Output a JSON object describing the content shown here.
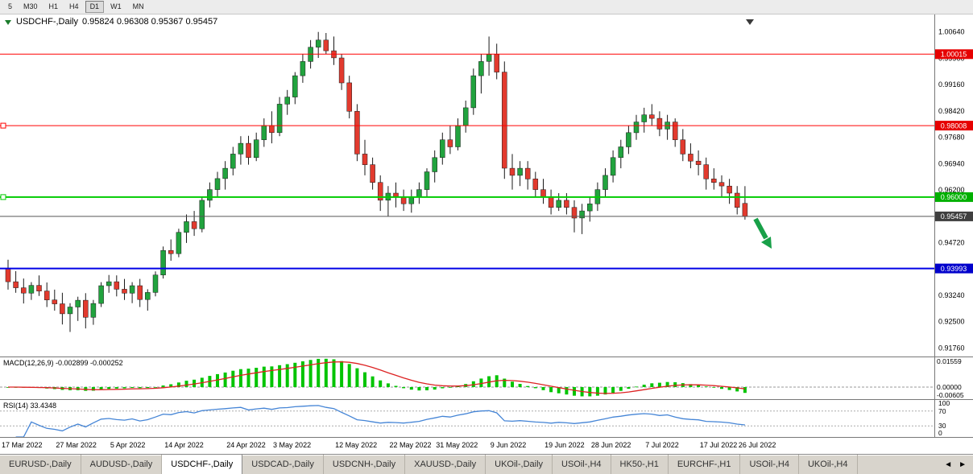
{
  "toolbar": {
    "periods": [
      "5",
      "M30",
      "H1",
      "H4",
      "D1",
      "W1",
      "MN"
    ],
    "active": "D1"
  },
  "chart": {
    "title": "USDCHF-,Daily",
    "ohlc": "0.95824 0.96308 0.95367 0.95457",
    "open": "0.95824",
    "high": "0.96308",
    "low": "0.95367",
    "close": "0.95457"
  },
  "chart_data": {
    "type": "candlestick",
    "symbol": "USDCHF-",
    "timeframe": "Daily",
    "ylim": [
      0.9152,
      1.0113
    ],
    "y_axis_labels": [
      "1.00640",
      "0.99900",
      "0.99160",
      "0.98420",
      "0.97680",
      "0.96940",
      "0.96200",
      "0.95460",
      "0.94720",
      "0.93980",
      "0.93240",
      "0.92500",
      "0.91760"
    ],
    "x_axis_labels": [
      {
        "t": "17 Mar 2022",
        "i": 0
      },
      {
        "t": "27 Mar 2022",
        "i": 7
      },
      {
        "t": "5 Apr 2022",
        "i": 14
      },
      {
        "t": "14 Apr 2022",
        "i": 21
      },
      {
        "t": "24 Apr 2022",
        "i": 29
      },
      {
        "t": "3 May 2022",
        "i": 35
      },
      {
        "t": "12 May 2022",
        "i": 43
      },
      {
        "t": "22 May 2022",
        "i": 50
      },
      {
        "t": "31 May 2022",
        "i": 56
      },
      {
        "t": "9 Jun 2022",
        "i": 63
      },
      {
        "t": "19 Jun 2022",
        "i": 70
      },
      {
        "t": "28 Jun 2022",
        "i": 76
      },
      {
        "t": "7 Jul 2022",
        "i": 83
      },
      {
        "t": "17 Jul 2022",
        "i": 90
      },
      {
        "t": "26 Jul 2022",
        "i": 95
      }
    ],
    "colors": {
      "up": "#21a33e",
      "down": "#e23a2e",
      "wick": "#1a1a1a"
    },
    "arrow_color": "#18a048",
    "candles": [
      [
        0.94,
        0.9424,
        0.934,
        0.9362
      ],
      [
        0.9362,
        0.9392,
        0.9331,
        0.9345
      ],
      [
        0.9345,
        0.9371,
        0.9301,
        0.933
      ],
      [
        0.933,
        0.9361,
        0.9311,
        0.9352
      ],
      [
        0.9352,
        0.938,
        0.9322,
        0.9336
      ],
      [
        0.9336,
        0.936,
        0.9291,
        0.9311
      ],
      [
        0.9311,
        0.934,
        0.9281,
        0.93
      ],
      [
        0.93,
        0.9331,
        0.9242,
        0.9272
      ],
      [
        0.9272,
        0.9302,
        0.9221,
        0.9291
      ],
      [
        0.9291,
        0.932,
        0.9252,
        0.931
      ],
      [
        0.931,
        0.933,
        0.9231,
        0.9262
      ],
      [
        0.9262,
        0.9311,
        0.9241,
        0.9301
      ],
      [
        0.9301,
        0.9361,
        0.9291,
        0.9351
      ],
      [
        0.9351,
        0.9381,
        0.9331,
        0.9362
      ],
      [
        0.9362,
        0.938,
        0.9321,
        0.9341
      ],
      [
        0.9341,
        0.937,
        0.9311,
        0.933
      ],
      [
        0.933,
        0.9361,
        0.9302,
        0.9351
      ],
      [
        0.9351,
        0.937,
        0.9291,
        0.9312
      ],
      [
        0.9312,
        0.9341,
        0.9281,
        0.9332
      ],
      [
        0.9332,
        0.9391,
        0.9321,
        0.9381
      ],
      [
        0.9381,
        0.9461,
        0.9371,
        0.945
      ],
      [
        0.945,
        0.9481,
        0.9421,
        0.9441
      ],
      [
        0.9441,
        0.9511,
        0.9431,
        0.9501
      ],
      [
        0.9501,
        0.9551,
        0.9471,
        0.9531
      ],
      [
        0.9531,
        0.9561,
        0.9491,
        0.9511
      ],
      [
        0.9511,
        0.9601,
        0.9501,
        0.9591
      ],
      [
        0.9591,
        0.9641,
        0.9571,
        0.9621
      ],
      [
        0.9621,
        0.9671,
        0.9601,
        0.9652
      ],
      [
        0.9652,
        0.9701,
        0.9621,
        0.9681
      ],
      [
        0.9681,
        0.9741,
        0.9661,
        0.9721
      ],
      [
        0.9721,
        0.9771,
        0.9691,
        0.9751
      ],
      [
        0.9751,
        0.9772,
        0.9691,
        0.9711
      ],
      [
        0.9711,
        0.9781,
        0.9701,
        0.9761
      ],
      [
        0.9761,
        0.9821,
        0.9741,
        0.9801
      ],
      [
        0.9801,
        0.9841,
        0.9751,
        0.9781
      ],
      [
        0.9781,
        0.9881,
        0.9771,
        0.9861
      ],
      [
        0.9861,
        0.9901,
        0.9831,
        0.9881
      ],
      [
        0.9881,
        0.9951,
        0.9861,
        0.9941
      ],
      [
        0.9941,
        1.0001,
        0.9921,
        0.9981
      ],
      [
        0.9981,
        1.0041,
        0.9961,
        1.0021
      ],
      [
        1.0021,
        1.0064,
        0.9991,
        1.0041
      ],
      [
        1.0041,
        1.0061,
        1.0001,
        1.0011
      ],
      [
        1.0011,
        1.0051,
        0.9971,
        0.9991
      ],
      [
        0.9991,
        1.0001,
        0.9901,
        0.9921
      ],
      [
        0.9921,
        0.9941,
        0.9821,
        0.9841
      ],
      [
        0.9841,
        0.9861,
        0.9701,
        0.9721
      ],
      [
        0.9721,
        0.9761,
        0.9661,
        0.9691
      ],
      [
        0.9691,
        0.9711,
        0.9621,
        0.9641
      ],
      [
        0.9641,
        0.9661,
        0.9561,
        0.9591
      ],
      [
        0.9591,
        0.9631,
        0.9546,
        0.9611
      ],
      [
        0.9611,
        0.9641,
        0.9571,
        0.9601
      ],
      [
        0.9601,
        0.9621,
        0.9561,
        0.9581
      ],
      [
        0.9581,
        0.9621,
        0.9556,
        0.9601
      ],
      [
        0.9601,
        0.9641,
        0.9581,
        0.9621
      ],
      [
        0.9621,
        0.9681,
        0.9601,
        0.9671
      ],
      [
        0.9671,
        0.9731,
        0.9641,
        0.9711
      ],
      [
        0.9711,
        0.9781,
        0.9691,
        0.9761
      ],
      [
        0.9761,
        0.9801,
        0.9721,
        0.9741
      ],
      [
        0.9741,
        0.9821,
        0.9731,
        0.9801
      ],
      [
        0.9801,
        0.9871,
        0.9781,
        0.9851
      ],
      [
        0.9851,
        0.9961,
        0.9831,
        0.9941
      ],
      [
        0.9941,
        1.0001,
        0.9891,
        0.9981
      ],
      [
        0.9981,
        1.0051,
        0.9941,
        1.0001
      ],
      [
        1.0001,
        1.0031,
        0.9931,
        0.9951
      ],
      [
        0.9951,
        0.9981,
        0.9651,
        0.9681
      ],
      [
        0.9681,
        0.9721,
        0.9621,
        0.9661
      ],
      [
        0.9661,
        0.9701,
        0.9631,
        0.9681
      ],
      [
        0.9681,
        0.9701,
        0.9621,
        0.9651
      ],
      [
        0.9651,
        0.9671,
        0.9601,
        0.9621
      ],
      [
        0.9621,
        0.9651,
        0.9581,
        0.9601
      ],
      [
        0.9601,
        0.9621,
        0.9551,
        0.9571
      ],
      [
        0.9571,
        0.9611,
        0.9561,
        0.9591
      ],
      [
        0.9591,
        0.9611,
        0.9551,
        0.9571
      ],
      [
        0.9571,
        0.9591,
        0.9501,
        0.9541
      ],
      [
        0.9541,
        0.9581,
        0.9496,
        0.9561
      ],
      [
        0.9561,
        0.9601,
        0.9531,
        0.9581
      ],
      [
        0.9581,
        0.9641,
        0.9561,
        0.9621
      ],
      [
        0.9621,
        0.9681,
        0.9601,
        0.9661
      ],
      [
        0.9661,
        0.9731,
        0.9641,
        0.9711
      ],
      [
        0.9711,
        0.9761,
        0.9681,
        0.9741
      ],
      [
        0.9741,
        0.9801,
        0.9721,
        0.9781
      ],
      [
        0.9781,
        0.9831,
        0.9761,
        0.9811
      ],
      [
        0.9811,
        0.9851,
        0.9781,
        0.9831
      ],
      [
        0.9831,
        0.9861,
        0.9801,
        0.9821
      ],
      [
        0.9821,
        0.9841,
        0.9771,
        0.9791
      ],
      [
        0.9791,
        0.9831,
        0.9761,
        0.9811
      ],
      [
        0.9811,
        0.9821,
        0.9741,
        0.9761
      ],
      [
        0.9761,
        0.9791,
        0.9701,
        0.9721
      ],
      [
        0.9721,
        0.9751,
        0.9681,
        0.9701
      ],
      [
        0.9701,
        0.9731,
        0.9661,
        0.9691
      ],
      [
        0.9691,
        0.9711,
        0.9621,
        0.9651
      ],
      [
        0.9651,
        0.9681,
        0.9621,
        0.9641
      ],
      [
        0.9641,
        0.9661,
        0.9601,
        0.9631
      ],
      [
        0.9631,
        0.9651,
        0.9581,
        0.9611
      ],
      [
        0.9611,
        0.9631,
        0.9551,
        0.9571
      ],
      [
        0.95824,
        0.96308,
        0.95367,
        0.95457
      ]
    ],
    "hlines": [
      {
        "name": "resistance-line-upper",
        "price": 1.00015,
        "label": "1.00015",
        "color": "#ff0000",
        "badge": "#e60000",
        "width": 1,
        "handle": false
      },
      {
        "name": "resistance-line-lower",
        "price": 0.98008,
        "label": "0.98008",
        "color": "#ff0000",
        "badge": "#e60000",
        "width": 1,
        "handle": true
      },
      {
        "name": "support-line-green",
        "price": 0.96,
        "label": "0.96000",
        "color": "#00cc00",
        "badge": "#00b000",
        "width": 2,
        "handle": true
      },
      {
        "name": "current-price-line",
        "price": 0.95457,
        "label": "0.95457",
        "color": "#555555",
        "badge": "#3f3f3f",
        "width": 1,
        "handle": false
      },
      {
        "name": "support-line-blue",
        "price": 0.93993,
        "label": "0.93993",
        "color": "#0000e6",
        "badge": "#0000cc",
        "width": 2,
        "handle": false
      }
    ],
    "indicators": [
      {
        "name": "MACD",
        "label": "MACD(12,26,9) -0.002899 -0.000252",
        "params": "12,26,9",
        "value": "-0.002899",
        "signal_value": "-0.000252",
        "hist_color": "#00c400",
        "signal_color": "#dd2222",
        "axis": [
          {
            "t": "0.01559",
            "v": 0.01559
          },
          {
            "t": "0.00000",
            "v": 0
          },
          {
            "t": "-0.00605",
            "v": -0.00605
          }
        ]
      },
      {
        "name": "RSI",
        "label": "RSI(14) 33.4348",
        "value": "33.4348",
        "line_color": "#4585d6",
        "levels": [
          70,
          30
        ],
        "axis": [
          {
            "t": "100",
            "v": 100
          },
          {
            "t": "70",
            "v": 70
          },
          {
            "t": "30",
            "v": 30
          },
          {
            "t": "0",
            "v": 0
          }
        ]
      }
    ]
  },
  "tabs": {
    "items": [
      "EURUSD-,Daily",
      "AUDUSD-,Daily",
      "USDCHF-,Daily",
      "USDCAD-,Daily",
      "USDCNH-,Daily",
      "XAUUSD-,Daily",
      "UKOil-,Daily",
      "USOil-,H4",
      "HK50-,H1",
      "EURCHF-,H1",
      "USOil-,H4",
      "UKOil-,H4"
    ],
    "active_index": 2,
    "scroll": {
      "left": "◄",
      "right": "►"
    }
  }
}
